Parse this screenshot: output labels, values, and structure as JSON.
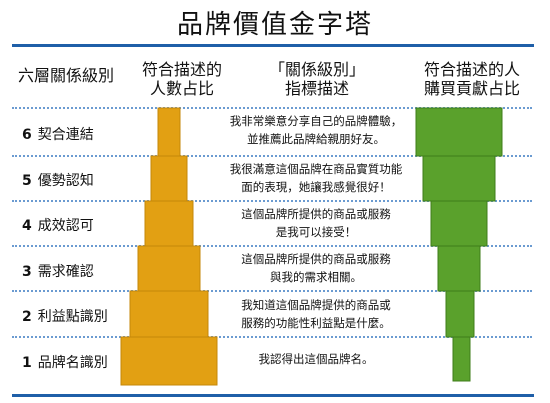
{
  "title": "品牌價值金字塔",
  "headers": {
    "levels": "六層關係級別",
    "match_line1": "符合描述的",
    "match_line2": "人數占比",
    "desc_line1": "「關係級別」",
    "desc_line2": "指標描述",
    "buy_line1": "符合描述的人",
    "buy_line2": "購買貢獻占比"
  },
  "colors": {
    "orange": "#e2a013",
    "green": "#5aa12c",
    "rule": "#1f5fa8",
    "separator": "#6b9bd1"
  },
  "levels": [
    {
      "num": "6",
      "name": "契合連結",
      "desc1": "我非常樂意分享自己的品牌體驗，",
      "desc2": "並推薦此品牌給親朋好友。"
    },
    {
      "num": "5",
      "name": "優勢認知",
      "desc1": "我很滿意這個品牌在商品實質功能",
      "desc2": "面的表現，她讓我感覺很好！"
    },
    {
      "num": "4",
      "name": "成效認可",
      "desc1": "這個品牌所提供的商品或服務",
      "desc2": "是我可以接受！"
    },
    {
      "num": "3",
      "name": "需求確認",
      "desc1": "這個品牌所提供的商品或服務",
      "desc2": "與我的需求相關。"
    },
    {
      "num": "2",
      "name": "利益點識別",
      "desc1": "我知道這個品牌提供的商品或",
      "desc2": "服務的功能性利益點是什麼。"
    },
    {
      "num": "1",
      "name": "品牌名識別",
      "desc1": "我認得出這個品牌名。",
      "desc2": ""
    }
  ]
}
